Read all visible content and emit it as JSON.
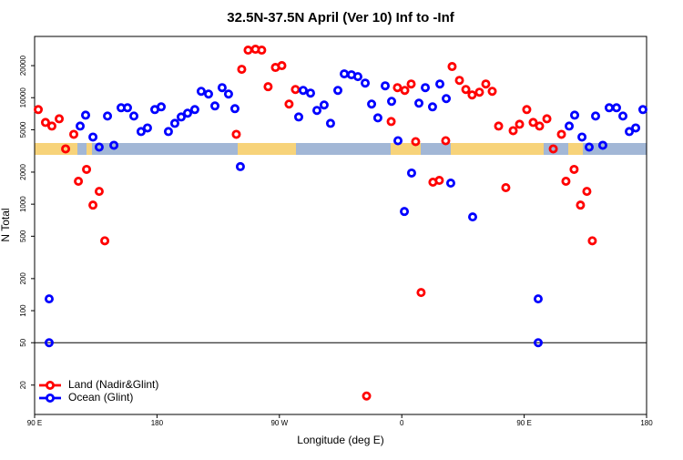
{
  "chart_data": {
    "type": "scatter",
    "title": "32.5N-37.5N April (Ver 10)   Inf to -Inf",
    "x_label": "Longitude (deg E)",
    "y_label": "N Total",
    "xlim": [
      90,
      540
    ],
    "xticks": [
      {
        "value": 90,
        "label": "90 E"
      },
      {
        "value": 180,
        "label": "180"
      },
      {
        "value": 270,
        "label": "90 W"
      },
      {
        "value": 360,
        "label": "0"
      },
      {
        "value": 450,
        "label": "90 E"
      },
      {
        "value": 540,
        "label": "180"
      }
    ],
    "ylim": [
      10.6,
      37600
    ],
    "yticks": [
      20,
      50,
      100,
      200,
      500,
      1000,
      2000,
      5000,
      10000,
      20000
    ],
    "log_y": true,
    "hline": 50,
    "legend": "bottomleft",
    "series": [
      {
        "name": "Land (Nadir&Glint)",
        "color": "#ff0000",
        "x": [
          92.7,
          98.0,
          102.7,
          108.1,
          112.8,
          118.8,
          122.2,
          128.2,
          132.9,
          137.5,
          141.6,
          238.3,
          242.3,
          247.0,
          252.4,
          257.0,
          261.7,
          267.1,
          271.8,
          277.1,
          281.8,
          334.1,
          352.2,
          356.8,
          362.2,
          366.9,
          370.2,
          374.2,
          382.9,
          387.6,
          392.3,
          397.0,
          402.4,
          407.1,
          411.7,
          417.1,
          421.8,
          426.5,
          431.2,
          436.5,
          441.9,
          446.6,
          451.9,
          456.6,
          461.3,
          466.7,
          471.4,
          477.4,
          480.7,
          486.7,
          491.4,
          496.1,
          500.1
        ],
        "values": [
          7734,
          5855,
          5410,
          6335,
          3304,
          4529,
          1641,
          2122,
          980,
          1318,
          453,
          4529,
          18480,
          27960,
          28520,
          27960,
          12680,
          19230,
          20000,
          8711,
          11940,
          15.8,
          5970,
          12430,
          11710,
          13450,
          3867,
          148,
          1609,
          1673,
          3943,
          19610,
          14550,
          11940,
          10610,
          11260,
          13450,
          11480,
          5410,
          1430,
          4902,
          5630,
          7734,
          5855,
          5410,
          6335,
          3304,
          4529,
          1641,
          2122,
          980,
          1318,
          453
        ]
      },
      {
        "name": "Ocean (Glint)",
        "color": "#0000ff",
        "x": [
          100.7,
          100.7,
          123.5,
          127.5,
          132.9,
          137.5,
          143.6,
          148.3,
          153.6,
          158.3,
          163.0,
          168.3,
          173.0,
          178.4,
          183.1,
          188.4,
          193.1,
          197.8,
          202.5,
          207.8,
          212.5,
          217.9,
          222.6,
          227.9,
          232.6,
          237.3,
          241.3,
          284.2,
          287.5,
          292.9,
          297.6,
          302.9,
          307.6,
          313.0,
          317.7,
          323.0,
          327.7,
          333.1,
          337.8,
          342.4,
          347.8,
          352.5,
          357.2,
          361.9,
          367.2,
          372.6,
          377.3,
          382.6,
          388.0,
          392.7,
          396.0,
          412.1,
          460.3,
          460.3,
          483.1,
          487.1,
          492.5,
          497.8,
          502.5,
          507.8,
          512.5,
          517.9,
          522.6,
          527.3,
          532.0,
          537.3
        ],
        "values": [
          129,
          50,
          5410,
          6855,
          4270,
          3436,
          6725,
          3576,
          8045,
          8045,
          6725,
          4808,
          5200,
          7734,
          8203,
          4808,
          5740,
          6590,
          7153,
          7734,
          11480,
          10820,
          8368,
          12430,
          10820,
          7886,
          2252,
          6590,
          11710,
          11040,
          7593,
          8540,
          5740,
          11710,
          16740,
          16410,
          15770,
          13710,
          8711,
          6465,
          12930,
          9242,
          3943,
          854,
          1961,
          8881,
          12430,
          8203,
          13450,
          9804,
          1577,
          759,
          129,
          50,
          5410,
          6855,
          4270,
          3436,
          6725,
          3576,
          8045,
          8045,
          6725,
          4808,
          5200,
          7734
        ]
      }
    ]
  }
}
